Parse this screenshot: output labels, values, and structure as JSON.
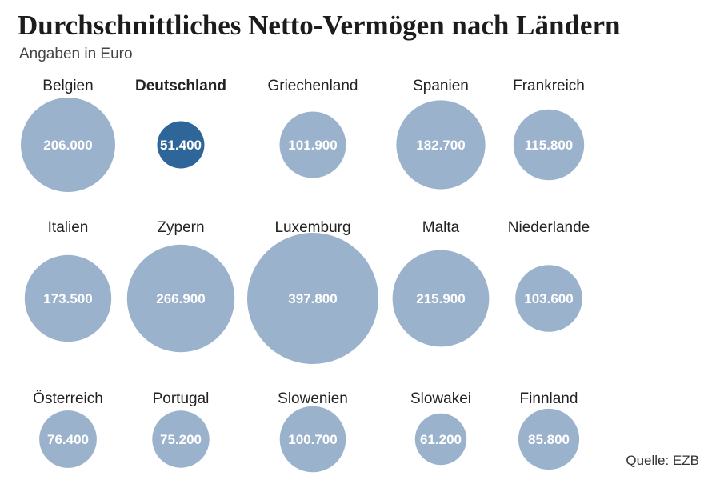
{
  "chart_data": {
    "type": "bubble",
    "title": "Durchschnittliches Netto-Vermögen nach Ländern",
    "subtitle": "Angaben in Euro",
    "source": "Quelle: EZB",
    "colors": {
      "default": "#9bb2cc",
      "highlight": "#2e6699",
      "label": "#ffffff",
      "country": "#222222"
    },
    "rows": [
      [
        {
          "country": "Belgien",
          "value": 206000,
          "label": "206.000",
          "highlight": false
        },
        {
          "country": "Deutschland",
          "value": 51400,
          "label": "51.400",
          "highlight": true
        },
        {
          "country": "Griechenland",
          "value": 101900,
          "label": "101.900",
          "highlight": false
        },
        {
          "country": "Spanien",
          "value": 182700,
          "label": "182.700",
          "highlight": false
        },
        {
          "country": "Frankreich",
          "value": 115800,
          "label": "115.800",
          "highlight": false
        }
      ],
      [
        {
          "country": "Italien",
          "value": 173500,
          "label": "173.500",
          "highlight": false
        },
        {
          "country": "Zypern",
          "value": 266900,
          "label": "266.900",
          "highlight": false
        },
        {
          "country": "Luxemburg",
          "value": 397800,
          "label": "397.800",
          "highlight": false
        },
        {
          "country": "Malta",
          "value": 215900,
          "label": "215.900",
          "highlight": false
        },
        {
          "country": "Niederlande",
          "value": 103600,
          "label": "103.600",
          "highlight": false
        }
      ],
      [
        {
          "country": "Österreich",
          "value": 76400,
          "label": "76.400",
          "highlight": false
        },
        {
          "country": "Portugal",
          "value": 75200,
          "label": "75.200",
          "highlight": false
        },
        {
          "country": "Slowenien",
          "value": 100700,
          "label": "100.700",
          "highlight": false
        },
        {
          "country": "Slowakei",
          "value": 61200,
          "label": "61.200",
          "highlight": false
        },
        {
          "country": "Finnland",
          "value": 85800,
          "label": "85.800",
          "highlight": false
        }
      ]
    ]
  }
}
